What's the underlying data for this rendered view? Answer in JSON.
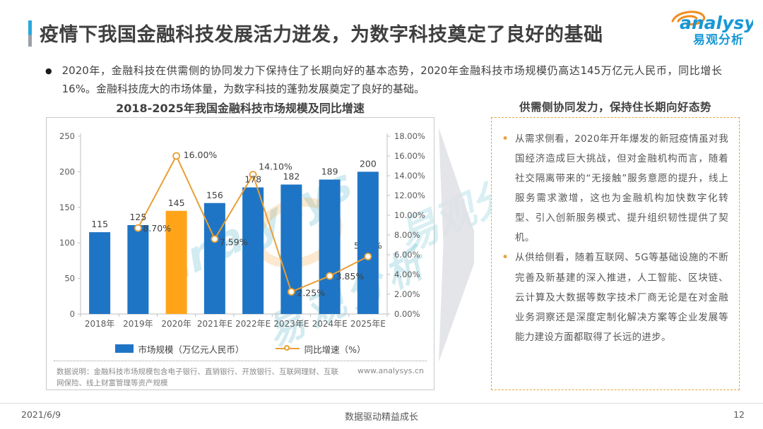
{
  "brand": {
    "name": "analysys",
    "name_cn": "易观分析"
  },
  "header": {
    "title": "疫情下我国金融科技发展活力迸发，为数字科技奠定了良好的基础"
  },
  "summary": {
    "bullet": "●",
    "text": "2020年，金融科技在供需侧的协同发力下保持住了长期向好的基本态势，2020年金融科技市场规模仍高达145万亿元人民币，同比增长16%。金融科技庞大的市场体量，为数字科技的蓬勃发展奠定了良好的基础。"
  },
  "chart_data": {
    "type": "bar",
    "title": "2018-2025年我国金融科技市场规模及同比增速",
    "categories": [
      "2018年",
      "2019年",
      "2020年",
      "2021年E",
      "2022年E",
      "2023年E",
      "2024年E",
      "2025年E"
    ],
    "series": [
      {
        "name": "市场规模（万亿元人民币）",
        "type": "bar",
        "values": [
          115,
          125,
          145,
          156,
          178,
          182,
          189,
          200
        ],
        "color": "#1f75c5",
        "highlight_index": 2,
        "highlight_color": "#ffa419"
      },
      {
        "name": "同比增速（%）",
        "type": "line",
        "values": [
          null,
          8.7,
          16.0,
          7.59,
          14.1,
          2.25,
          3.85,
          5.82
        ],
        "labels": [
          null,
          "8.70%",
          "16.00%",
          "7.59%",
          "14.10%",
          "2.25%",
          "3.85%",
          "5.82%"
        ],
        "color": "#e79f35"
      }
    ],
    "left_axis": {
      "min": 0,
      "max": 250,
      "tick_step": 50,
      "tick_labels": [
        "250",
        "200",
        "150",
        "100",
        "50",
        "0"
      ]
    },
    "right_axis": {
      "min": 0,
      "max": 18,
      "tick_step": 2,
      "tick_labels": [
        "18.00%",
        "16.00%",
        "14.00%",
        "12.00%",
        "10.00%",
        "8.00%",
        "6.00%",
        "4.00%",
        "2.00%",
        "0.00%"
      ]
    },
    "grid": false,
    "legend_position": "bottom"
  },
  "chart_panel": {
    "note": "数据说明：金融科技市场规模包含电子银行、直销银行、开放银行、互联网理财、互联网保险、线上财富管理等资产规模",
    "source_url": "www.analysys.cn"
  },
  "insight": {
    "title": "供需侧协同发力，保持住长期向好态势",
    "bullets": [
      "从需求侧看，2020年开年爆发的新冠疫情虽对我国经济造成巨大挑战，但对金融机构而言，随着社交隔离带来的“无接触”服务意愿的提升，线上服务需求激增，这也为金融机构加快数字化转型、引入创新服务模式、提升组织韧性提供了契机。",
      "从供给侧看，随着互联网、5G等基础设施的不断完善及新基建的深入推进，人工智能、区块链、云计算及大数据等数字技术厂商无论是在对金融业务洞察还是深度定制化解决方案等企业发展等能力建设方面都取得了长远的进步。"
    ]
  },
  "footer": {
    "date": "2021/6/9",
    "slogan": "数据驱动精益成长",
    "page": "12"
  }
}
